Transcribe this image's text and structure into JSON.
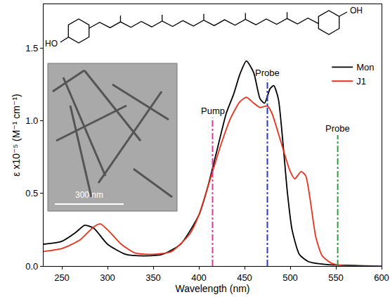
{
  "chart_data": {
    "type": "line",
    "x_label": "Wavelength (nm)",
    "y_label": "ε x10⁻⁵ (M⁻¹ cm⁻¹)",
    "xlim": [
      230,
      600
    ],
    "xticks": [
      250,
      300,
      350,
      400,
      450,
      500,
      550,
      600
    ],
    "ylim": [
      0,
      1.8
    ],
    "yticks": [
      {
        "value": 0,
        "label": "0.0"
      },
      0.5,
      {
        "value": 1,
        "label": "1.0"
      },
      1.5
    ],
    "grid": false,
    "legend": "top right",
    "series": [
      {
        "name": "Mon",
        "color": "#000000",
        "line_style": "solid",
        "x": [
          230,
          250,
          265,
          275,
          285,
          300,
          320,
          340,
          360,
          380,
          400,
          410,
          420,
          430,
          438,
          445,
          452,
          460,
          467,
          472,
          478,
          482,
          487,
          492,
          497,
          502,
          510,
          520,
          540,
          600
        ],
        "values": [
          0.15,
          0.17,
          0.23,
          0.28,
          0.26,
          0.15,
          0.08,
          0.07,
          0.08,
          0.15,
          0.35,
          0.55,
          0.8,
          1.05,
          1.18,
          1.32,
          1.41,
          1.33,
          1.15,
          1.12,
          1.22,
          1.24,
          1.15,
          0.85,
          0.5,
          0.25,
          0.08,
          0.03,
          0.01,
          0.0
        ]
      },
      {
        "name": "J1",
        "color": "#e8321e",
        "line_style": "solid",
        "x": [
          230,
          250,
          270,
          285,
          292,
          300,
          315,
          330,
          350,
          370,
          390,
          400,
          415,
          425,
          435,
          445,
          452,
          460,
          467,
          475,
          480,
          490,
          500,
          505,
          512,
          517,
          522,
          528,
          535,
          545,
          560,
          600
        ],
        "values": [
          0.1,
          0.12,
          0.18,
          0.27,
          0.29,
          0.25,
          0.15,
          0.09,
          0.08,
          0.1,
          0.22,
          0.35,
          0.65,
          0.85,
          1.02,
          1.13,
          1.16,
          1.12,
          1.09,
          1.1,
          1.05,
          0.85,
          0.65,
          0.6,
          0.65,
          0.62,
          0.45,
          0.2,
          0.07,
          0.02,
          0.0,
          0.0
        ]
      }
    ],
    "annotations": [
      {
        "text": "Pump",
        "x": 415,
        "y": 1.02,
        "color": "#e0389a",
        "line_style": "dashdot"
      },
      {
        "text": "Probe",
        "x": 475,
        "y": 1.28,
        "color": "#2b3bbf",
        "line_style": "dashdot"
      },
      {
        "text": "Probe",
        "x": 552,
        "y": 0.9,
        "color": "#2e9e3e",
        "line_style": "dashdot"
      }
    ],
    "inset_label": "300 nm",
    "structure_labels": [
      "HO",
      "OH"
    ]
  }
}
